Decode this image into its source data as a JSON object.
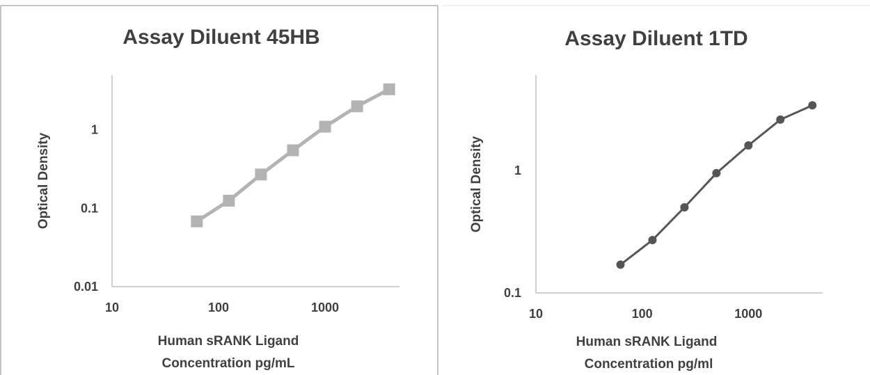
{
  "chart_data": [
    {
      "type": "line",
      "title": "Assay Diluent 45HB",
      "ylabel": "Optical Density",
      "xlabel_lines": [
        "Human sRANK Ligand",
        "Concentration pg/mL"
      ],
      "x_scale": "log",
      "y_scale": "log",
      "xlim": [
        10,
        5000
      ],
      "ylim": [
        0.01,
        5
      ],
      "x_ticks": [
        10,
        100,
        1000
      ],
      "x_tick_labels": [
        "10",
        "100",
        "1000"
      ],
      "y_ticks": [
        0.01,
        0.1,
        1
      ],
      "y_tick_labels": [
        "0.01",
        "0.1",
        "1"
      ],
      "marker": "square",
      "color": "#b3b3b3",
      "grid": false,
      "series": [
        {
          "x": [
            62.5,
            125,
            250,
            500,
            1000,
            2000,
            4000
          ],
          "y": [
            0.068,
            0.125,
            0.27,
            0.55,
            1.1,
            2.0,
            3.3
          ]
        }
      ]
    },
    {
      "type": "line",
      "title": "Assay Diluent 1TD",
      "ylabel": "Optical Density",
      "xlabel_lines": [
        "Human sRANK Ligand",
        "Concentration pg/ml"
      ],
      "x_scale": "log",
      "y_scale": "log",
      "xlim": [
        10,
        5000
      ],
      "ylim": [
        0.1,
        6
      ],
      "x_ticks": [
        10,
        100,
        1000
      ],
      "x_tick_labels": [
        "10",
        "100",
        "1000"
      ],
      "y_ticks": [
        0.1,
        1
      ],
      "y_tick_labels": [
        "0.1",
        "1"
      ],
      "marker": "circle",
      "color": "#555555",
      "grid": false,
      "series": [
        {
          "x": [
            62.5,
            125,
            250,
            500,
            1000,
            2000,
            4000
          ],
          "y": [
            0.17,
            0.27,
            0.5,
            0.95,
            1.6,
            2.6,
            3.4
          ]
        }
      ]
    }
  ]
}
